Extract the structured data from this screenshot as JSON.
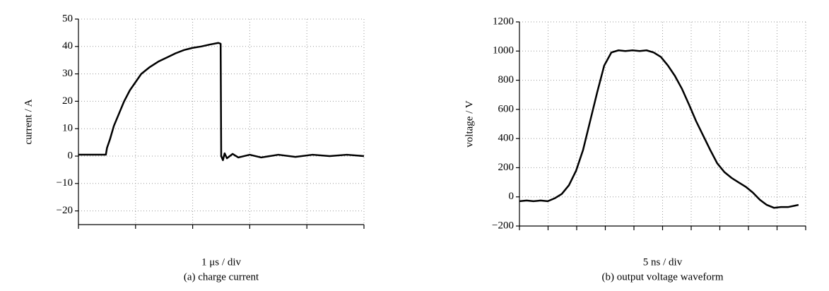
{
  "chart_data": [
    {
      "type": "line",
      "caption": "(a) charge current",
      "xlabel": "1 μs / div",
      "ylabel": "current / A",
      "xlim": [
        0,
        5
      ],
      "ylim": [
        -25,
        50
      ],
      "yticks": [
        {
          "value": -20,
          "label": "−20"
        },
        {
          "value": -10,
          "label": "−10"
        },
        0,
        10,
        20,
        30,
        40,
        50
      ],
      "grid": true,
      "series": [
        {
          "color": "#000000",
          "x": [
            0,
            0.48,
            0.5,
            0.55,
            0.62,
            0.7,
            0.8,
            0.9,
            1.0,
            1.1,
            1.25,
            1.4,
            1.55,
            1.7,
            1.85,
            2.0,
            2.15,
            2.3,
            2.45,
            2.49,
            2.5,
            2.53,
            2.56,
            2.6,
            2.7,
            2.8,
            3.0,
            3.2,
            3.5,
            3.8,
            4.1,
            4.4,
            4.7,
            5.0
          ],
          "values": [
            0.5,
            0.5,
            3,
            6,
            11,
            15,
            20,
            24,
            27,
            30,
            32.5,
            34.5,
            36,
            37.5,
            38.7,
            39.5,
            40,
            40.7,
            41.3,
            41,
            0,
            -1.5,
            1,
            -0.8,
            0.8,
            -0.5,
            0.5,
            -0.5,
            0.5,
            -0.3,
            0.5,
            0,
            0.5,
            0
          ]
        }
      ]
    },
    {
      "type": "line",
      "caption": "(b) output voltage waveform",
      "xlabel": "5 ns / div",
      "ylabel": "voltage / V",
      "xlim": [
        0,
        10
      ],
      "ylim": [
        -200,
        1200
      ],
      "yticks": [
        {
          "value": -200,
          "label": "−200"
        },
        0,
        200,
        400,
        600,
        800,
        1000,
        1200
      ],
      "grid": true,
      "series": [
        {
          "color": "#000000",
          "x": [
            0,
            0.25,
            0.49,
            0.74,
            0.99,
            1.23,
            1.48,
            1.73,
            1.98,
            2.22,
            2.47,
            2.72,
            2.96,
            3.21,
            3.46,
            3.7,
            3.95,
            4.2,
            4.44,
            4.69,
            4.94,
            5.19,
            5.43,
            5.68,
            5.93,
            6.17,
            6.42,
            6.67,
            6.91,
            7.16,
            7.41,
            7.65,
            7.9,
            8.15,
            8.4,
            8.64,
            8.89,
            9.14,
            9.38,
            9.63,
            9.75
          ],
          "values": [
            -30,
            -25,
            -30,
            -25,
            -30,
            -10,
            20,
            80,
            180,
            320,
            520,
            720,
            900,
            990,
            1005,
            1000,
            1005,
            1000,
            1005,
            990,
            960,
            900,
            830,
            740,
            630,
            520,
            420,
            320,
            230,
            170,
            130,
            100,
            70,
            30,
            -20,
            -55,
            -75,
            -70,
            -70,
            -60,
            -55
          ]
        }
      ]
    }
  ]
}
